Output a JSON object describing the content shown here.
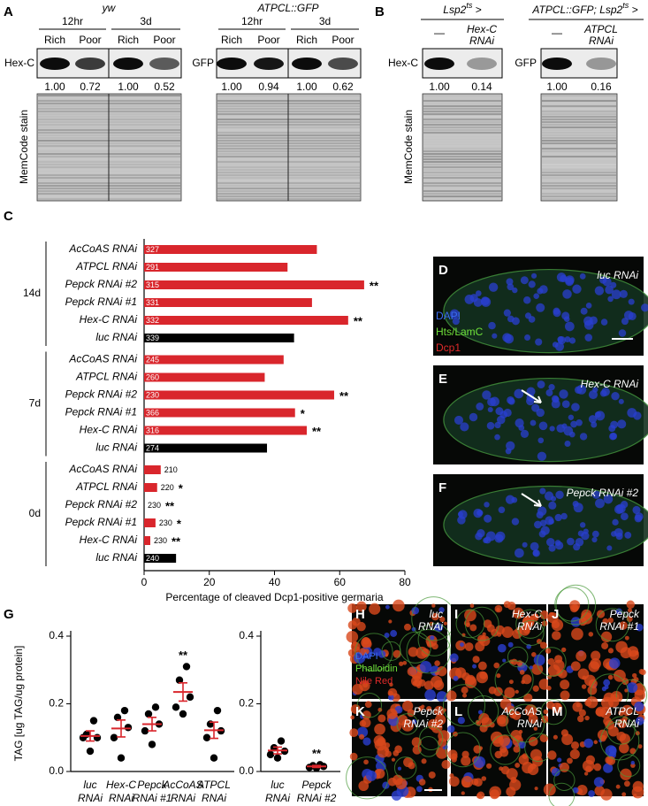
{
  "panel_a": {
    "label": "A",
    "blots": [
      {
        "genotype": "yw",
        "times": [
          "12hr",
          "3d"
        ],
        "conditions": [
          "Rich",
          "Poor",
          "Rich",
          "Poor"
        ],
        "protein": "Hex-C",
        "quantification": [
          "1.00",
          "0.72",
          "1.00",
          "0.52"
        ]
      },
      {
        "genotype": "ATPCL::GFP",
        "times": [
          "12hr",
          "3d"
        ],
        "conditions": [
          "Rich",
          "Poor",
          "Rich",
          "Poor"
        ],
        "protein": "GFP",
        "quantification": [
          "1.00",
          "0.94",
          "1.00",
          "0.62"
        ]
      }
    ],
    "loading_label": "MemCode stain"
  },
  "panel_b": {
    "label": "B",
    "blots": [
      {
        "genotype": {
          "prefix": "Lsp2",
          "superscript": "ts",
          "suffix": " >"
        },
        "conditions": [
          [
            "—"
          ],
          [
            "Hex-C",
            "RNAi"
          ]
        ],
        "protein": "Hex-C",
        "quantification": [
          "1.00",
          "0.14"
        ]
      },
      {
        "genotype": {
          "prefix": "ATPCL::GFP; Lsp2",
          "superscript": "ts",
          "suffix": " >"
        },
        "conditions": [
          [
            "—"
          ],
          [
            "ATPCL",
            "RNAi"
          ]
        ],
        "protein": "GFP",
        "quantification": [
          "1.00",
          "0.16"
        ]
      }
    ],
    "loading_label": "MemCode stain"
  },
  "micrographs_d_f": [
    {
      "label": "D",
      "condition": "luc RNAi",
      "stains": [
        "DAPI",
        "Hts/LamC",
        "Dcp1"
      ]
    },
    {
      "label": "E",
      "condition": "Hex-C RNAi"
    },
    {
      "label": "F",
      "condition": "Pepck RNAi #2"
    }
  ],
  "micrographs_h_m": [
    {
      "label": "H",
      "condition": [
        "luc",
        "RNAi"
      ],
      "stains": [
        "DAPI",
        "Phalloidin",
        "Nile Red"
      ]
    },
    {
      "label": "I",
      "condition": [
        "Hex-C",
        "RNAi"
      ]
    },
    {
      "label": "J",
      "condition": [
        "Pepck",
        "RNAi #1"
      ]
    },
    {
      "label": "K",
      "condition": [
        "Pepck",
        "RNAi #2"
      ]
    },
    {
      "label": "L",
      "condition": [
        "AcCoAS",
        "RNAi"
      ]
    },
    {
      "label": "M",
      "condition": [
        "ATPCL",
        "RNAi"
      ]
    }
  ],
  "chart_data": [
    {
      "type": "bar",
      "orientation": "horizontal",
      "panel_label": "C",
      "categories": [
        "AcCoAS RNAi",
        "ATPCL RNAi",
        "Pepck RNAi #2",
        "Pepck RNAi #1",
        "Hex-C RNAi",
        "luc RNAi",
        "AcCoAS RNAi",
        "ATPCL RNAi",
        "Pepck RNAi #2",
        "Pepck RNAi #1",
        "Hex-C RNAi",
        "luc RNAi",
        "AcCoAS RNAi",
        "ATPCL RNAi",
        "Pepck RNAi #2",
        "Pepck RNAi #1",
        "Hex-C RNAi",
        "luc RNAi"
      ],
      "groups": [
        "14d",
        "7d",
        "0d"
      ],
      "series": [
        {
          "color": "#d9262c",
          "values": [
            53,
            44,
            67.5,
            51.5,
            62.6,
            null,
            42.8,
            37,
            58.3,
            46.3,
            49.9,
            null,
            5.1,
            4,
            0,
            3.5,
            1.9,
            null
          ]
        },
        {
          "color": "#000000",
          "values": [
            null,
            null,
            null,
            null,
            null,
            46,
            null,
            null,
            null,
            null,
            null,
            37.7,
            null,
            null,
            null,
            null,
            null,
            9.8
          ]
        }
      ],
      "sample_sizes": [
        327,
        291,
        315,
        331,
        332,
        339,
        245,
        260,
        230,
        366,
        316,
        274,
        210,
        220,
        230,
        230,
        230,
        240
      ],
      "significance": [
        null,
        null,
        "**",
        null,
        "**",
        null,
        null,
        null,
        "**",
        "*",
        "**",
        null,
        null,
        "*",
        "**",
        "*",
        "**",
        null
      ],
      "xlim": [
        0,
        80
      ],
      "xticks": [
        0,
        20,
        40,
        60,
        80
      ],
      "xlabel": "Percentage of cleaved Dcp1-positive germaria"
    },
    {
      "type": "dot",
      "panel_label": "G",
      "ylabel": "TAG [ug TAG/ug protein]",
      "categories": [
        [
          "luc",
          "RNAi"
        ],
        [
          "Hex-C",
          "RNAi"
        ],
        [
          "Pepck",
          "RNAi #1"
        ],
        [
          "AcCoAS",
          "RNAi"
        ],
        [
          "ATPCL",
          "RNAi"
        ]
      ],
      "points": [
        [
          0.06,
          0.1,
          0.1,
          0.11,
          0.15
        ],
        [
          0.04,
          0.1,
          0.13,
          0.16,
          0.18
        ],
        [
          0.08,
          0.12,
          0.14,
          0.17,
          0.19
        ],
        [
          0.17,
          0.19,
          0.22,
          0.27,
          0.31
        ],
        [
          0.04,
          0.1,
          0.12,
          0.14,
          0.18
        ]
      ],
      "means": [
        0.105,
        0.127,
        0.14,
        0.235,
        0.122
      ],
      "sems": [
        0.015,
        0.025,
        0.02,
        0.027,
        0.024
      ],
      "significance": [
        null,
        null,
        null,
        "**",
        null
      ],
      "color": "#000000",
      "mean_color": "#d9262c",
      "ylim": [
        0,
        0.4
      ],
      "yticks": [
        {
          "value": 0,
          "label": "0.0"
        },
        0.2,
        0.4
      ]
    },
    {
      "type": "dot",
      "categories": [
        [
          "luc",
          "RNAi"
        ],
        [
          "Pepck",
          "RNAi #2"
        ]
      ],
      "points": [
        [
          0.04,
          0.05,
          0.06,
          0.07,
          0.09
        ],
        [
          0.01,
          0.012,
          0.015,
          0.017,
          0.02
        ]
      ],
      "means": [
        0.062,
        0.015
      ],
      "sems": [
        0.01,
        0.003
      ],
      "significance": [
        null,
        "**"
      ],
      "color": "#000000",
      "mean_color": "#d9262c",
      "ylim": [
        0,
        0.4
      ],
      "yticks": [
        {
          "value": 0,
          "label": "0.0"
        },
        0.2,
        0.4
      ]
    }
  ]
}
